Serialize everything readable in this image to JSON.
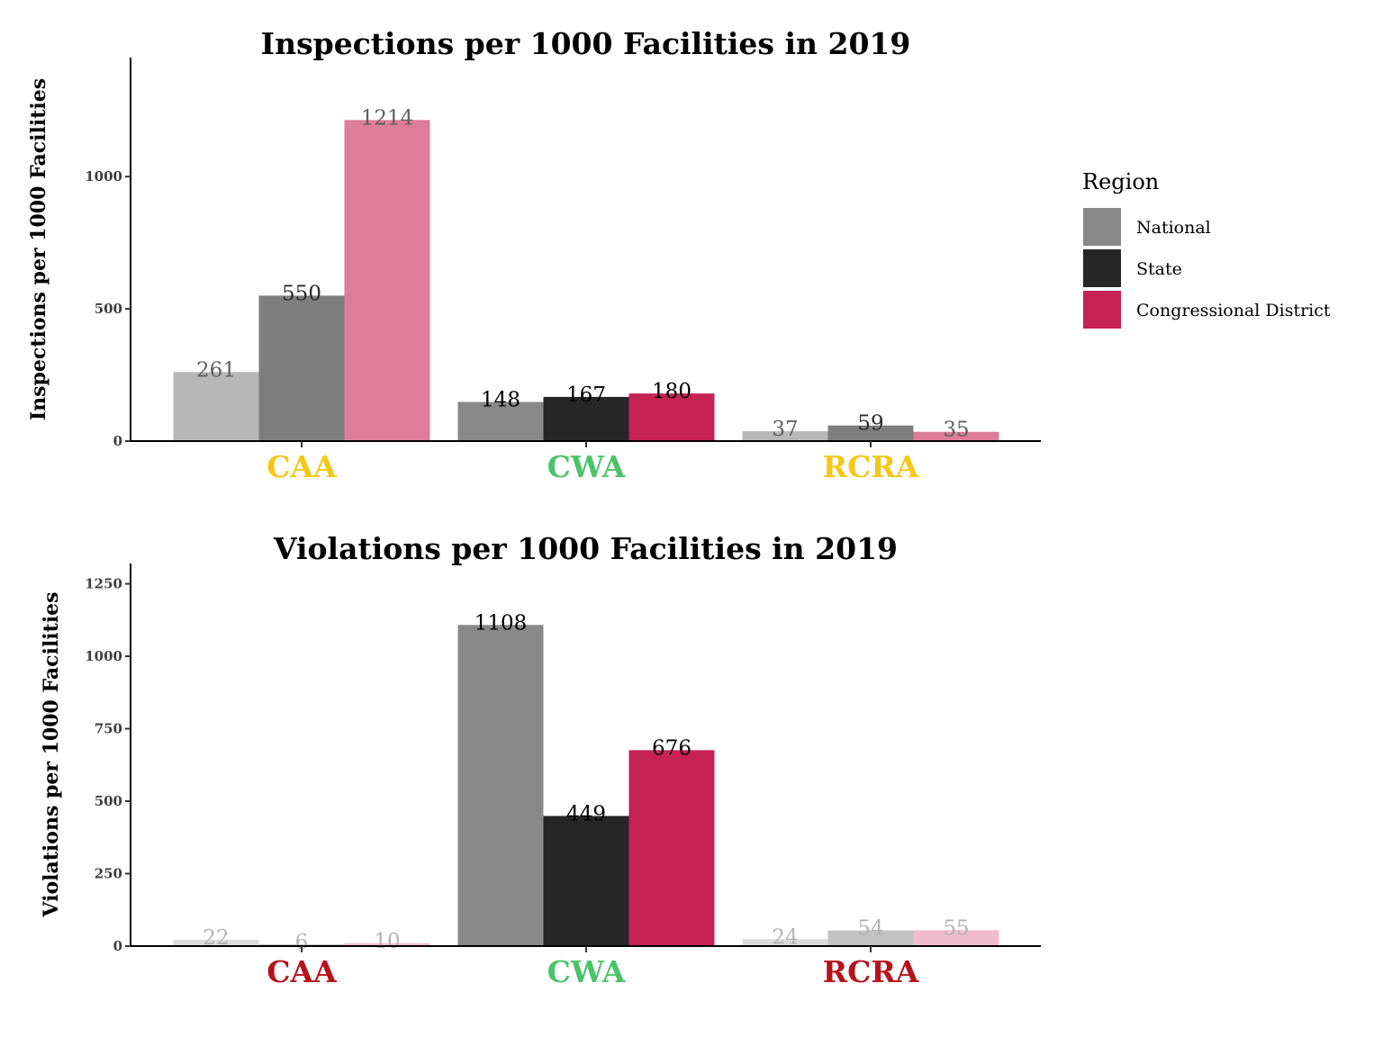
{
  "legend": {
    "title": "Region",
    "items": [
      {
        "label": "National",
        "color": "#888888"
      },
      {
        "label": "State",
        "color": "#262626"
      },
      {
        "label": "Congressional District",
        "color": "#c62255"
      }
    ]
  },
  "chart_data": [
    {
      "type": "bar",
      "title": "Inspections per 1000 Facilities in 2019",
      "xlabel": "",
      "ylabel": "Inspections per 1000 Facilities",
      "ylim": [
        0,
        1450
      ],
      "yticks": [
        0,
        500,
        1000
      ],
      "categories": [
        {
          "name": "CAA",
          "color": "#f5c718"
        },
        {
          "name": "CWA",
          "color": "#4cc36a"
        },
        {
          "name": "RCRA",
          "color": "#f5c718"
        }
      ],
      "series": [
        {
          "name": "National",
          "values": [
            261,
            148,
            37
          ],
          "bar_colors": [
            "#b7b7b7",
            "#888888",
            "#b7b7b7"
          ],
          "label_colors": [
            "#606060",
            "#000000",
            "#606060"
          ]
        },
        {
          "name": "State",
          "values": [
            550,
            167,
            59
          ],
          "bar_colors": [
            "#7e7e7e",
            "#262626",
            "#7e7e7e"
          ],
          "label_colors": [
            "#2b2b2b",
            "#000000",
            "#2b2b2b"
          ]
        },
        {
          "name": "Congressional District",
          "values": [
            1214,
            180,
            35
          ],
          "bar_colors": [
            "#df7b9b",
            "#c62255",
            "#df7b9b"
          ],
          "label_colors": [
            "#606060",
            "#000000",
            "#606060"
          ]
        }
      ]
    },
    {
      "type": "bar",
      "title": "Violations per 1000 Facilities in 2019",
      "xlabel": "",
      "ylabel": "Violations per 1000 Facilities",
      "ylim": [
        0,
        1320
      ],
      "yticks": [
        0,
        250,
        500,
        750,
        1000,
        1250
      ],
      "categories": [
        {
          "name": "CAA",
          "color": "#b5121b"
        },
        {
          "name": "CWA",
          "color": "#4cc36a"
        },
        {
          "name": "RCRA",
          "color": "#b5121b"
        }
      ],
      "series": [
        {
          "name": "National",
          "values": [
            22,
            1108,
            24
          ],
          "bar_colors": [
            "#dcdcdc",
            "#888888",
            "#dcdcdc"
          ],
          "label_colors": [
            "#b3b3b3",
            "#000000",
            "#b3b3b3"
          ]
        },
        {
          "name": "State",
          "values": [
            6,
            449,
            54
          ],
          "bar_colors": [
            "#c2c2c2",
            "#262626",
            "#c2c2c2"
          ],
          "label_colors": [
            "#b3b3b3",
            "#000000",
            "#b3b3b3"
          ]
        },
        {
          "name": "Congressional District",
          "values": [
            10,
            676,
            55
          ],
          "bar_colors": [
            "#f0bccd",
            "#c62255",
            "#f0bccd"
          ],
          "label_colors": [
            "#b3b3b3",
            "#000000",
            "#b3b3b3"
          ]
        }
      ]
    }
  ]
}
